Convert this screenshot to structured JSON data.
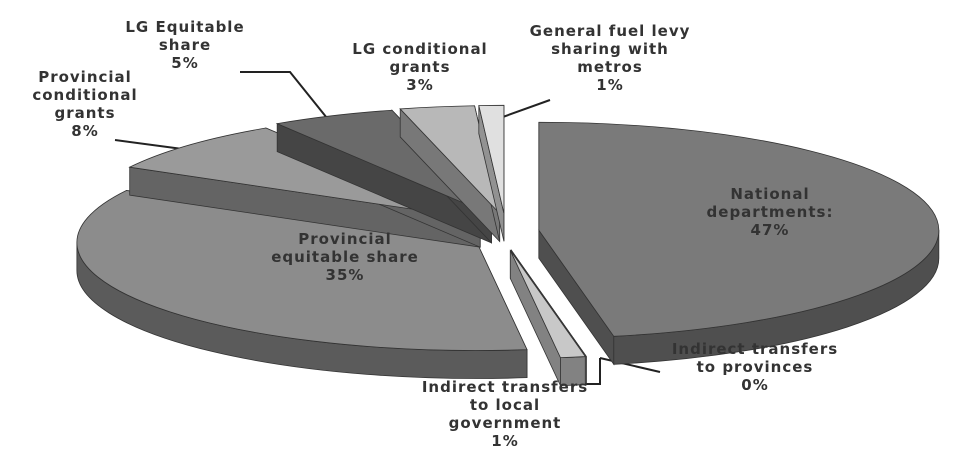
{
  "chart_data": {
    "type": "pie",
    "categories": [
      "National departments:",
      "Indirect transfers to provinces",
      "Indirect transfers to local government",
      "Provincial equitable share",
      "Provincial conditional grants",
      "LG Equitable share",
      "LG conditional grants",
      "General fuel levy sharing with metros"
    ],
    "values": [
      47,
      0,
      1,
      35,
      8,
      5,
      3,
      1
    ],
    "value_labels": [
      "47%",
      "0%",
      "1%",
      "35%",
      "8%",
      "5%",
      "3%",
      "1%"
    ],
    "colors": [
      "#7a7a7a",
      "#d0d0d0",
      "#c8c8c8",
      "#8c8c8c",
      "#9a9a9a",
      "#6a6a6a",
      "#b8b8b8",
      "#e0e0e0"
    ]
  }
}
